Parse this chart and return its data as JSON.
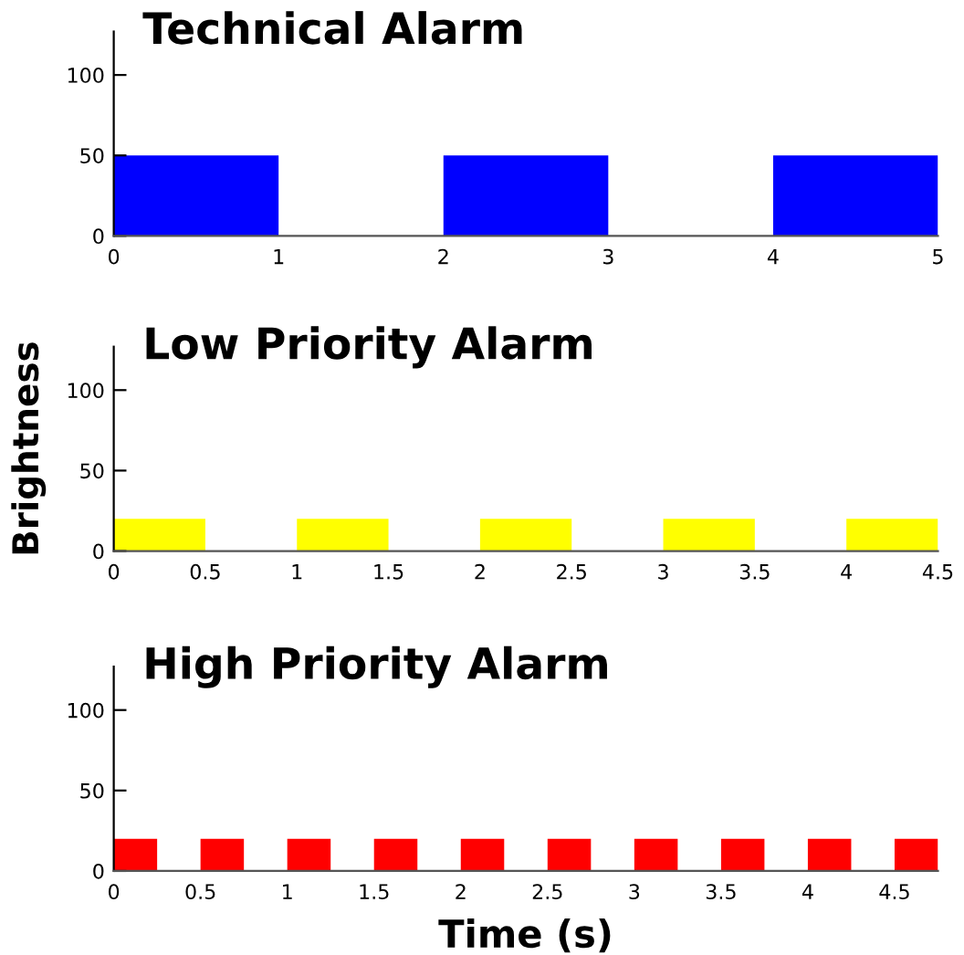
{
  "chart_data": [
    {
      "type": "histogram",
      "title": "Technical Alarm",
      "bins": [
        0,
        1,
        2,
        3,
        4,
        5
      ],
      "values": [
        50,
        0,
        50,
        0,
        50
      ],
      "color": "#0000ff",
      "xlim": [
        0,
        5
      ],
      "xticks": [
        0,
        1,
        2,
        3,
        4,
        5
      ],
      "ylim": [
        0,
        127
      ],
      "yticks": [
        0,
        50,
        100
      ],
      "grid": false
    },
    {
      "type": "histogram",
      "title": "Low Priority Alarm",
      "ylabel": "Brightness",
      "bins": [
        0,
        0.5,
        1,
        1.5,
        2,
        2.5,
        3,
        3.5,
        4,
        4.5
      ],
      "values": [
        20,
        0,
        20,
        0,
        20,
        0,
        20,
        0,
        20
      ],
      "color": "#ffff00",
      "xlim": [
        0,
        4.5
      ],
      "xticks": [
        0,
        0.5,
        1,
        1.5,
        2,
        2.5,
        3,
        3.5,
        4,
        4.5
      ],
      "ylim": [
        0,
        127
      ],
      "yticks": [
        0,
        50,
        100
      ],
      "grid": false
    },
    {
      "type": "histogram",
      "title": "High Priority Alarm",
      "xlabel": "Time (s)",
      "bins": [
        0,
        0.25,
        0.5,
        0.75,
        1,
        1.25,
        1.5,
        1.75,
        2,
        2.25,
        2.5,
        2.75,
        3,
        3.25,
        3.5,
        3.75,
        4,
        4.25,
        4.5,
        4.75
      ],
      "values": [
        20,
        0,
        20,
        0,
        20,
        0,
        20,
        0,
        20,
        0,
        20,
        0,
        20,
        0,
        20,
        0,
        20,
        0,
        20
      ],
      "color": "#ff0000",
      "xlim": [
        0,
        4.75
      ],
      "xticks": [
        0,
        0.5,
        1,
        1.5,
        2,
        2.5,
        3,
        3.5,
        4,
        4.5
      ],
      "ylim": [
        0,
        127
      ],
      "yticks": [
        0,
        50,
        100
      ],
      "grid": false
    }
  ]
}
